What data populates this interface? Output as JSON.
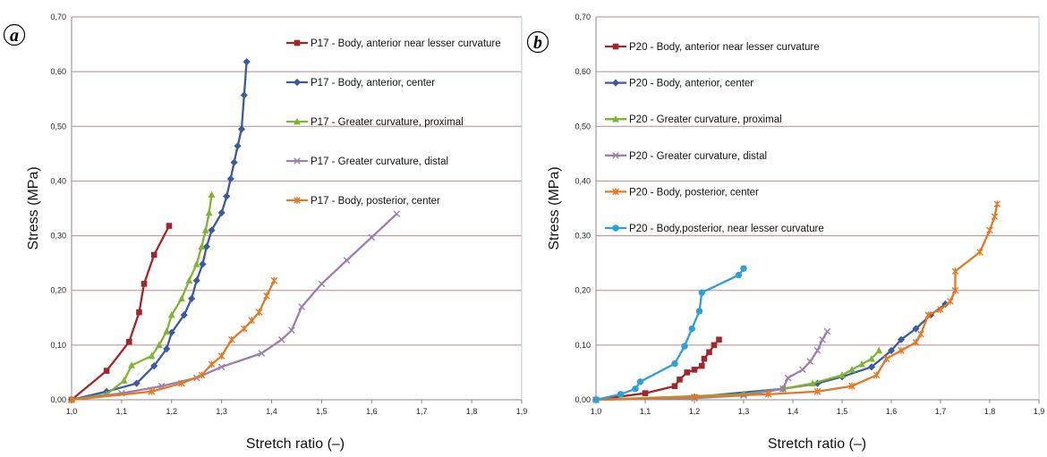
{
  "chart_data": [
    {
      "type": "line",
      "panel_label": "a",
      "xlabel": "Stretch ratio (–)",
      "ylabel": "Stress (MPa)",
      "xlim": [
        1.0,
        1.9
      ],
      "ylim": [
        0.0,
        0.7
      ],
      "x_ticks": [
        "1,0",
        "1,1",
        "1,2",
        "1,3",
        "1,4",
        "1,5",
        "1,6",
        "1,7",
        "1,8",
        "1,9"
      ],
      "y_ticks": [
        "0,00",
        "0,10",
        "0,20",
        "0,30",
        "0,40",
        "0,50",
        "0,60",
        "0,70"
      ],
      "grid": "horizontal",
      "legend_position": "right",
      "series": [
        {
          "name": "P17 - Body, anterior near lesser curvature",
          "color": "#a0272c",
          "marker": "square",
          "points": [
            [
              1.0,
              0.0
            ],
            [
              1.07,
              0.053
            ],
            [
              1.115,
              0.106
            ],
            [
              1.135,
              0.16
            ],
            [
              1.145,
              0.212
            ],
            [
              1.165,
              0.265
            ],
            [
              1.195,
              0.318
            ]
          ]
        },
        {
          "name": "P17 - Body, anterior, center",
          "color": "#3b5b9c",
          "marker": "diamond",
          "points": [
            [
              1.0,
              0.0
            ],
            [
              1.07,
              0.015
            ],
            [
              1.13,
              0.03
            ],
            [
              1.165,
              0.062
            ],
            [
              1.19,
              0.093
            ],
            [
              1.2,
              0.123
            ],
            [
              1.225,
              0.155
            ],
            [
              1.24,
              0.185
            ],
            [
              1.25,
              0.218
            ],
            [
              1.262,
              0.248
            ],
            [
              1.27,
              0.28
            ],
            [
              1.28,
              0.31
            ],
            [
              1.3,
              0.342
            ],
            [
              1.31,
              0.372
            ],
            [
              1.318,
              0.404
            ],
            [
              1.325,
              0.434
            ],
            [
              1.332,
              0.464
            ],
            [
              1.34,
              0.495
            ],
            [
              1.345,
              0.557
            ],
            [
              1.35,
              0.618
            ]
          ]
        },
        {
          "name": "P17 - Greater curvature, proximal",
          "color": "#7fb532",
          "marker": "triangle",
          "points": [
            [
              1.0,
              0.0
            ],
            [
              1.07,
              0.01
            ],
            [
              1.105,
              0.035
            ],
            [
              1.12,
              0.063
            ],
            [
              1.16,
              0.08
            ],
            [
              1.175,
              0.1
            ],
            [
              1.19,
              0.125
            ],
            [
              1.2,
              0.155
            ],
            [
              1.22,
              0.185
            ],
            [
              1.235,
              0.218
            ],
            [
              1.25,
              0.248
            ],
            [
              1.26,
              0.28
            ],
            [
              1.268,
              0.31
            ],
            [
              1.275,
              0.342
            ],
            [
              1.28,
              0.375
            ]
          ]
        },
        {
          "name": "P17 - Greater curvature, distal",
          "color": "#9b7fb0",
          "marker": "x",
          "points": [
            [
              1.0,
              0.0
            ],
            [
              1.1,
              0.012
            ],
            [
              1.18,
              0.025
            ],
            [
              1.25,
              0.04
            ],
            [
              1.3,
              0.06
            ],
            [
              1.38,
              0.085
            ],
            [
              1.42,
              0.11
            ],
            [
              1.44,
              0.127
            ],
            [
              1.46,
              0.17
            ],
            [
              1.5,
              0.212
            ],
            [
              1.55,
              0.255
            ],
            [
              1.6,
              0.297
            ],
            [
              1.65,
              0.34
            ]
          ]
        },
        {
          "name": "P17 - Body, posterior, center",
          "color": "#e07a24",
          "marker": "star",
          "points": [
            [
              1.0,
              0.0
            ],
            [
              1.16,
              0.015
            ],
            [
              1.22,
              0.03
            ],
            [
              1.26,
              0.045
            ],
            [
              1.28,
              0.065
            ],
            [
              1.3,
              0.08
            ],
            [
              1.32,
              0.11
            ],
            [
              1.345,
              0.13
            ],
            [
              1.36,
              0.145
            ],
            [
              1.375,
              0.16
            ],
            [
              1.39,
              0.19
            ],
            [
              1.405,
              0.218
            ]
          ]
        }
      ]
    },
    {
      "type": "line",
      "panel_label": "b",
      "xlabel": "Stretch ratio (–)",
      "ylabel": "Stress (MPa)",
      "xlim": [
        1.0,
        1.9
      ],
      "ylim": [
        0.0,
        0.7
      ],
      "x_ticks": [
        "1,0",
        "1,1",
        "1,2",
        "1,3",
        "1,4",
        "1,5",
        "1,6",
        "1,7",
        "1,8",
        "1,9"
      ],
      "y_ticks": [
        "0,00",
        "0,10",
        "0,20",
        "0,30",
        "0,40",
        "0,50",
        "0,60",
        "0,70"
      ],
      "grid": "horizontal",
      "legend_position": "right",
      "series": [
        {
          "name": "P20 - Body, anterior near lesser curvature",
          "color": "#a0272c",
          "marker": "square",
          "points": [
            [
              1.0,
              0.0
            ],
            [
              1.1,
              0.012
            ],
            [
              1.16,
              0.025
            ],
            [
              1.17,
              0.037
            ],
            [
              1.185,
              0.05
            ],
            [
              1.2,
              0.055
            ],
            [
              1.215,
              0.062
            ],
            [
              1.22,
              0.075
            ],
            [
              1.23,
              0.087
            ],
            [
              1.24,
              0.1
            ],
            [
              1.25,
              0.11
            ]
          ]
        },
        {
          "name": "P20 - Body, anterior, center",
          "color": "#3b5b9c",
          "marker": "diamond",
          "points": [
            [
              1.0,
              0.0
            ],
            [
              1.2,
              0.005
            ],
            [
              1.38,
              0.02
            ],
            [
              1.45,
              0.03
            ],
            [
              1.5,
              0.042
            ],
            [
              1.56,
              0.06
            ],
            [
              1.6,
              0.09
            ],
            [
              1.62,
              0.11
            ],
            [
              1.65,
              0.13
            ],
            [
              1.68,
              0.155
            ],
            [
              1.71,
              0.175
            ]
          ]
        },
        {
          "name": "P20 - Greater curvature, proximal",
          "color": "#7fb532",
          "marker": "triangle",
          "points": [
            [
              1.0,
              0.0
            ],
            [
              1.3,
              0.01
            ],
            [
              1.38,
              0.02
            ],
            [
              1.44,
              0.03
            ],
            [
              1.5,
              0.045
            ],
            [
              1.52,
              0.055
            ],
            [
              1.54,
              0.065
            ],
            [
              1.56,
              0.075
            ],
            [
              1.575,
              0.09
            ]
          ]
        },
        {
          "name": "P20 - Greater curvature, distal",
          "color": "#9b7fb0",
          "marker": "x",
          "points": [
            [
              1.0,
              0.0
            ],
            [
              1.2,
              0.003
            ],
            [
              1.3,
              0.008
            ],
            [
              1.38,
              0.02
            ],
            [
              1.39,
              0.04
            ],
            [
              1.42,
              0.055
            ],
            [
              1.435,
              0.07
            ],
            [
              1.45,
              0.09
            ],
            [
              1.46,
              0.11
            ],
            [
              1.47,
              0.125
            ]
          ]
        },
        {
          "name": "P20 - Body, posterior, center",
          "color": "#e07a24",
          "marker": "star",
          "points": [
            [
              1.0,
              0.0
            ],
            [
              1.2,
              0.005
            ],
            [
              1.35,
              0.01
            ],
            [
              1.45,
              0.015
            ],
            [
              1.52,
              0.025
            ],
            [
              1.57,
              0.045
            ],
            [
              1.59,
              0.075
            ],
            [
              1.62,
              0.09
            ],
            [
              1.65,
              0.105
            ],
            [
              1.66,
              0.12
            ],
            [
              1.675,
              0.155
            ],
            [
              1.7,
              0.165
            ],
            [
              1.72,
              0.18
            ],
            [
              1.73,
              0.2
            ],
            [
              1.73,
              0.235
            ],
            [
              1.78,
              0.27
            ],
            [
              1.8,
              0.31
            ],
            [
              1.81,
              0.335
            ],
            [
              1.815,
              0.358
            ]
          ]
        },
        {
          "name": "P20 - Body,posterior, near lesser curvature",
          "color": "#2fa0d6",
          "marker": "circle",
          "points": [
            [
              1.0,
              0.0
            ],
            [
              1.05,
              0.01
            ],
            [
              1.08,
              0.02
            ],
            [
              1.09,
              0.033
            ],
            [
              1.16,
              0.066
            ],
            [
              1.18,
              0.098
            ],
            [
              1.195,
              0.13
            ],
            [
              1.21,
              0.162
            ],
            [
              1.215,
              0.196
            ],
            [
              1.29,
              0.228
            ],
            [
              1.3,
              0.24
            ]
          ]
        }
      ]
    }
  ]
}
